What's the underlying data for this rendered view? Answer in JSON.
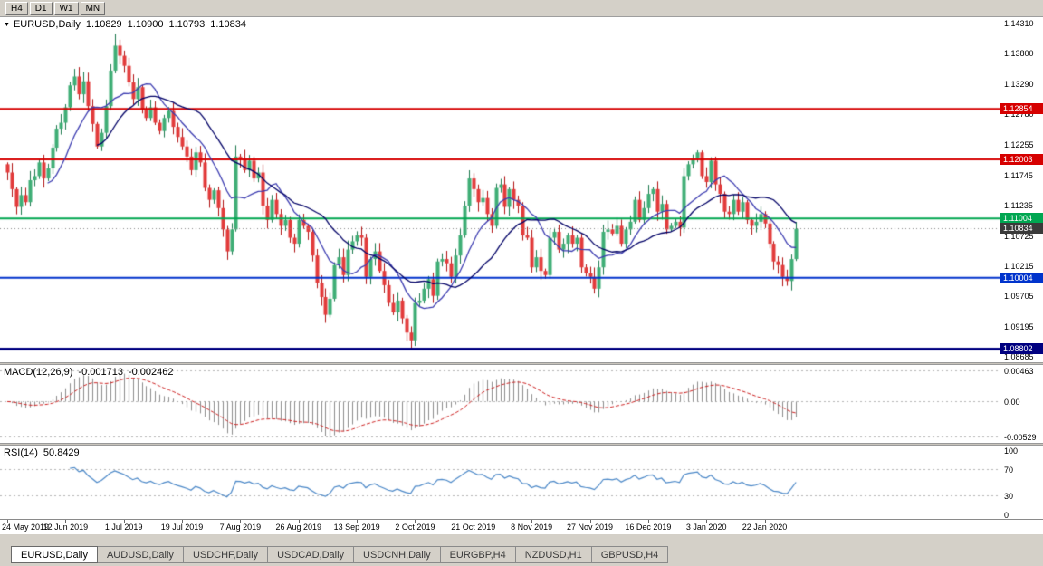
{
  "toolbar": {
    "timeframes": [
      "H4",
      "D1",
      "W1",
      "MN"
    ]
  },
  "chart": {
    "symbol_label": "EURUSD,Daily",
    "ohlc": {
      "open": "1.10829",
      "high": "1.10900",
      "low": "1.10793",
      "close": "1.10834"
    },
    "y_axis_labels": [
      "1.14310",
      "1.13800",
      "1.13290",
      "1.12780",
      "1.12255",
      "1.11745",
      "1.11235",
      "1.10725",
      "1.10215",
      "1.09705",
      "1.09195",
      "1.08685"
    ],
    "hlines": [
      {
        "value": 1.12854,
        "label": "1.12854",
        "color": "#d60000",
        "width": 2
      },
      {
        "value": 1.12003,
        "label": "1.12003",
        "color": "#d60000",
        "width": 2
      },
      {
        "value": 1.11004,
        "label": "1.11004",
        "color": "#00a651",
        "width": 2
      },
      {
        "value": 1.10004,
        "label": "1.10004",
        "color": "#0033cc",
        "width": 2
      },
      {
        "value": 1.08802,
        "label": "1.08802",
        "color": "#000080",
        "width": 3
      }
    ],
    "current_price": {
      "value": 1.10834,
      "label": "1.10834",
      "color": "#3a3a3a"
    }
  },
  "macd": {
    "label": "MACD(12,26,9)",
    "value_main": "-0.001713",
    "value_signal": "-0.002462",
    "axis_labels": [
      "0.00463",
      "0.00",
      "-0.00529"
    ]
  },
  "rsi": {
    "label": "RSI(14)",
    "value": "50.8429",
    "axis_labels": [
      "100",
      "70",
      "30",
      "0"
    ],
    "levels": [
      70,
      30
    ]
  },
  "x_axis": {
    "labels": [
      "24 May 2019",
      "12 Jun 2019",
      "1 Jul 2019",
      "19 Jul 2019",
      "7 Aug 2019",
      "26 Aug 2019",
      "13 Sep 2019",
      "2 Oct 2019",
      "21 Oct 2019",
      "8 Nov 2019",
      "27 Nov 2019",
      "16 Dec 2019",
      "3 Jan 2020",
      "22 Jan 2020"
    ]
  },
  "tabs": [
    {
      "label": "EURUSD,Daily",
      "active": true
    },
    {
      "label": "AUDUSD,Daily",
      "active": false
    },
    {
      "label": "USDCHF,Daily",
      "active": false
    },
    {
      "label": "USDCAD,Daily",
      "active": false
    },
    {
      "label": "USDCNH,Daily",
      "active": false
    },
    {
      "label": "EURGBP,H4",
      "active": false
    },
    {
      "label": "NZDUSD,H1",
      "active": false
    },
    {
      "label": "GBPUSD,H4",
      "active": false
    }
  ],
  "chart_data": {
    "type": "candlestick",
    "symbol": "EURUSD",
    "timeframe": "Daily",
    "title": "EURUSD,Daily 1.10829 1.10900 1.10793 1.10834",
    "view_min": 1.0858,
    "view_max": 1.144,
    "first_open": 1.1192,
    "closes": [
      1.1178,
      1.115,
      1.112,
      1.114,
      1.1128,
      1.1165,
      1.1172,
      1.1195,
      1.1168,
      1.1185,
      1.122,
      1.1252,
      1.1262,
      1.1288,
      1.1325,
      1.134,
      1.131,
      1.1332,
      1.129,
      1.126,
      1.1222,
      1.1245,
      1.129,
      1.135,
      1.1392,
      1.1375,
      1.1358,
      1.133,
      1.1302,
      1.1322,
      1.1285,
      1.127,
      1.1288,
      1.1262,
      1.1248,
      1.127,
      1.1282,
      1.1255,
      1.1238,
      1.1222,
      1.1205,
      1.1182,
      1.1212,
      1.1195,
      1.1152,
      1.1132,
      1.1148,
      1.1118,
      1.1082,
      1.1045,
      1.1082,
      1.1205,
      1.1202,
      1.1182,
      1.1198,
      1.1168,
      1.1178,
      1.1122,
      1.1098,
      1.1132,
      1.1108,
      1.1088,
      1.1098,
      1.1068,
      1.1058,
      1.1098,
      1.1088,
      1.1078,
      1.1038,
      1.0992,
      1.0968,
      1.0938,
      1.0965,
      1.1022,
      1.1035,
      1.1005,
      1.1048,
      1.1062,
      1.1072,
      1.1068,
      1.1002,
      1.1032,
      1.1045,
      1.1012,
      1.0988,
      1.0958,
      1.0942,
      1.0962,
      1.0932,
      1.0908,
      1.0895,
      1.0958,
      1.0962,
      1.0982,
      1.0998,
      1.097,
      1.1028,
      1.1032,
      1.1025,
      1.1002,
      1.1038,
      1.1072,
      1.1122,
      1.1168,
      1.115,
      1.1128,
      1.1135,
      1.1108,
      1.1088,
      1.1152,
      1.1158,
      1.112,
      1.115,
      1.1132,
      1.1122,
      1.1072,
      1.1068,
      1.1018,
      1.1035,
      1.1012,
      1.1005,
      1.1068,
      1.1078,
      1.1048,
      1.1058,
      1.1072,
      1.1058,
      1.1068,
      1.1018,
      1.1008,
      1.1002,
      1.0982,
      1.1018,
      1.1078,
      1.1082,
      1.1075,
      1.1088,
      1.1058,
      1.1082,
      1.1095,
      1.1132,
      1.1098,
      1.1118,
      1.1142,
      1.115,
      1.1112,
      1.1125,
      1.1082,
      1.1088,
      1.1095,
      1.1085,
      1.1172,
      1.1192,
      1.1202,
      1.1212,
      1.1172,
      1.1162,
      1.1198,
      1.1158,
      1.1142,
      1.1112,
      1.1108,
      1.1132,
      1.1112,
      1.1128,
      1.1098,
      1.1088,
      1.1095,
      1.1108,
      1.1092,
      1.1058,
      1.1028,
      1.1022,
      1.1002,
      1.0995,
      1.1032,
      1.1083
    ],
    "wick_overrides": {
      "24": {
        "high": 1.1412
      },
      "51": {
        "high": 1.1224
      },
      "90": {
        "low": 1.088
      }
    },
    "x_label_indices": [
      0,
      13,
      26,
      39,
      52,
      65,
      78,
      91,
      104,
      117,
      130,
      143,
      156,
      169
    ],
    "moving_averages": [
      {
        "period": 10,
        "color": "#3b3bb0"
      },
      {
        "period": 21,
        "color": "#000066"
      }
    ],
    "macd": {
      "fast": 12,
      "slow": 26,
      "signal": 9,
      "scale_max": 0.0055,
      "scale_min": -0.0062,
      "hist_color": "#8c8c8c",
      "signal_color": "#cc2020"
    },
    "rsi": {
      "period": 14,
      "color": "#4a87c7"
    },
    "colors": {
      "bull": "#3fae76",
      "bull_border": "#1d7a4e",
      "bear": "#e23b3b",
      "bear_border": "#b01212"
    }
  }
}
